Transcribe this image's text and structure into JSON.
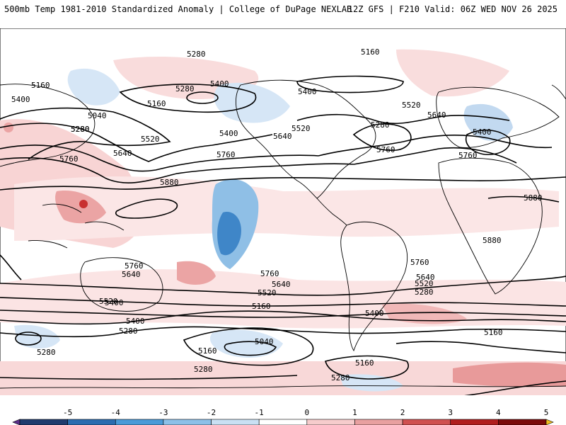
{
  "header": {
    "title": "500mb Temp 1981-2010 Standardized Anomaly | College of DuPage NEXLAB",
    "run_info": "12Z GFS | F210 Valid: 06Z WED NOV 26 2025"
  },
  "contour_labels": {
    "l5280a": "5280",
    "l5160a": "5160",
    "l5160b": "5160",
    "l5160c": "5160",
    "l5280b": "5280",
    "l5400a": "5400",
    "l5400b": "5400",
    "l5040a": "5040",
    "l5400c": "5400",
    "l5280c": "5280",
    "l5520a": "5520",
    "l5640a": "5640",
    "l5760a": "5760",
    "l5400d": "5400",
    "l5640b": "5640",
    "l5520b": "5520",
    "l5760b": "5760",
    "l5880a": "5880",
    "l5280d": "5280",
    "l5520c": "5520",
    "l5640c": "5640",
    "l5280e": "5280",
    "l5400e": "5400",
    "l5760c": "5760",
    "l5760d": "5760",
    "l5880b": "5880",
    "l5880c": "5880",
    "l5760e": "5760",
    "l5640d": "5640",
    "l5520d": "5520",
    "l5760f": "5760",
    "l5640e": "5640",
    "l5520e": "5520",
    "l5400f": "5400",
    "l5280f": "5280",
    "l5160d": "5160",
    "l5040b": "5040",
    "l5160e": "5160",
    "l5400g": "5400",
    "l5280g": "5280",
    "l5160f": "5160",
    "l5280h": "5280",
    "l5760g": "5760",
    "l5640f": "5640",
    "l5520f": "5520",
    "l5280i": "5280",
    "l5400h": "5400",
    "l5160g": "5160",
    "l5280j": "5280"
  },
  "colorbar": {
    "labels": [
      "-5",
      "-4",
      "-3",
      "-2",
      "-1",
      "0",
      "1",
      "2",
      "3",
      "4",
      "5"
    ],
    "colors": [
      "#5a2d8a",
      "#1f3a6e",
      "#2b6cb0",
      "#4a9ad8",
      "#8cc0e8",
      "#c9e0f3",
      "#ffffff",
      "#f6cccc",
      "#e8a0a0",
      "#d05050",
      "#b01e1e",
      "#7a0a0a",
      "#f0c020"
    ]
  },
  "colors": {
    "ocean": "#ffffff",
    "land_line": "#000000",
    "warm_light": "#f8d8d8",
    "warm_mid": "#eba4a4",
    "warm_strong": "#c83030",
    "cool_light": "#d6e6f6",
    "cool_mid": "#8fbfe6",
    "cool_strong": "#3f86c8"
  }
}
